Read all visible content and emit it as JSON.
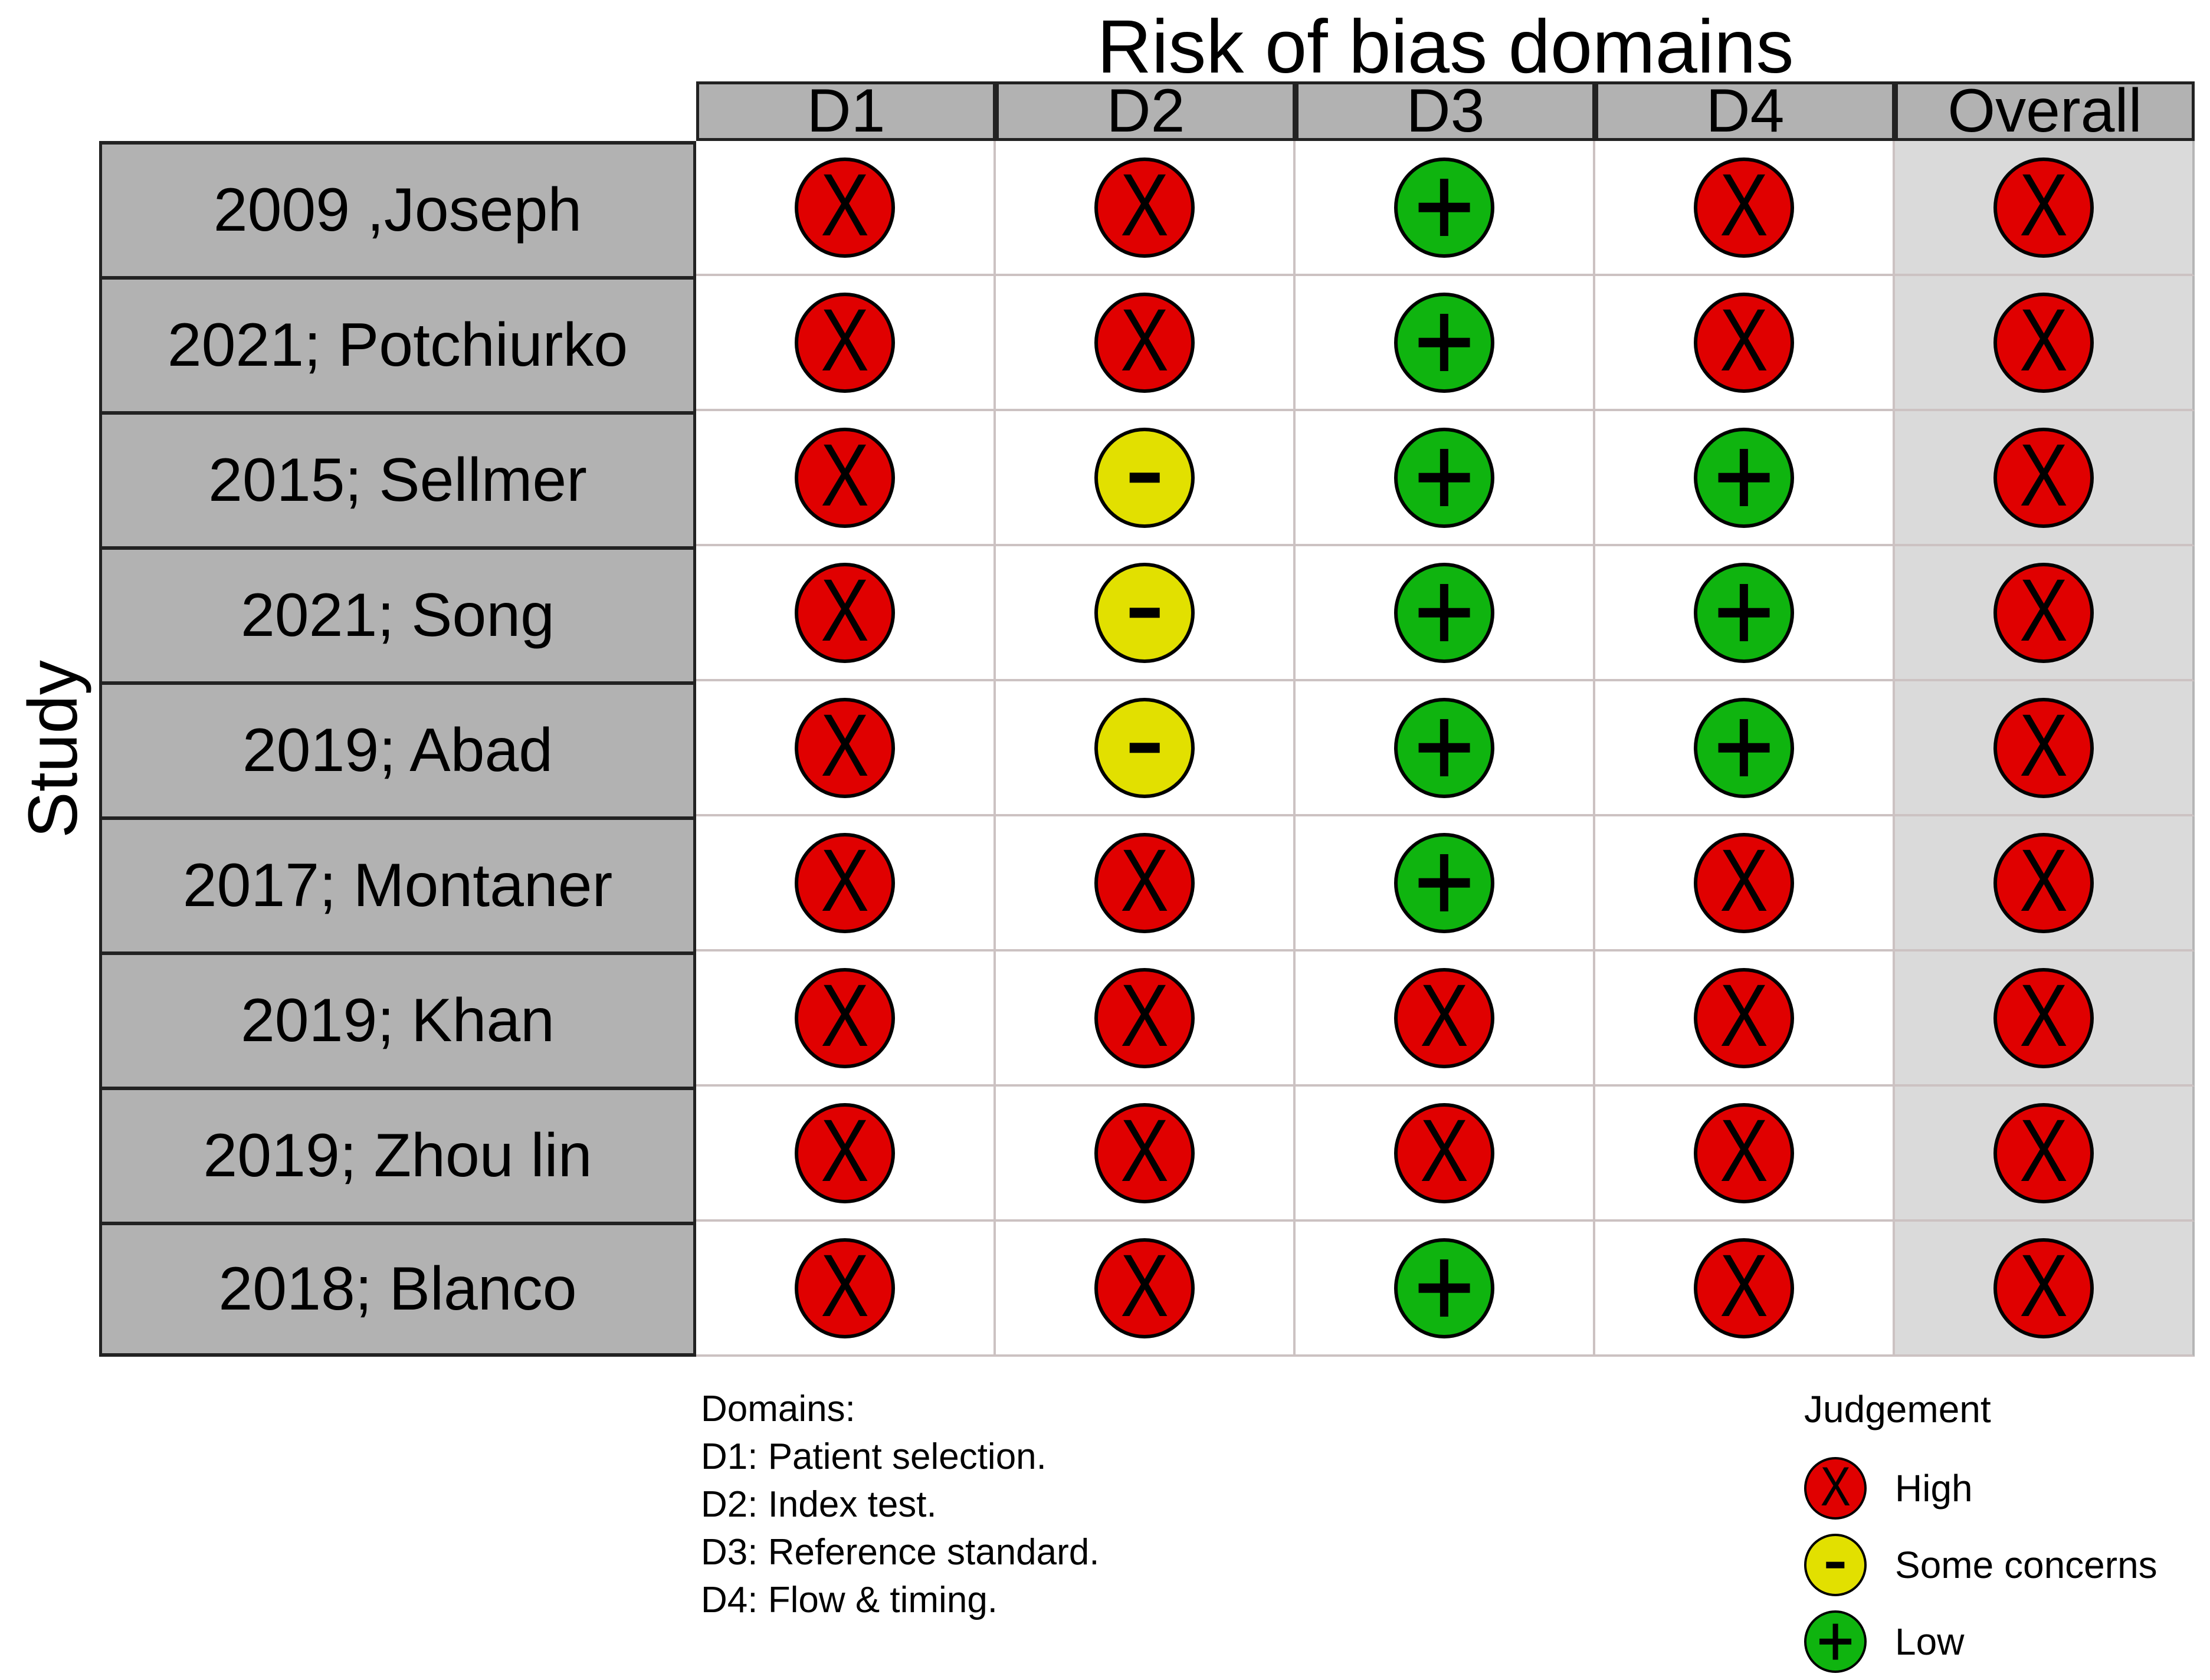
{
  "title": "Risk of bias domains",
  "y_axis_label": "Study",
  "columns": [
    "D1",
    "D2",
    "D3",
    "D4",
    "Overall"
  ],
  "rows": [
    {
      "study": "2009 ,Joseph",
      "judgements": [
        "high",
        "high",
        "low",
        "high",
        "high"
      ]
    },
    {
      "study": "2021; Potchiurko",
      "judgements": [
        "high",
        "high",
        "low",
        "high",
        "high"
      ]
    },
    {
      "study": "2015; Sellmer",
      "judgements": [
        "high",
        "some",
        "low",
        "low",
        "high"
      ]
    },
    {
      "study": "2021; Song",
      "judgements": [
        "high",
        "some",
        "low",
        "low",
        "high"
      ]
    },
    {
      "study": "2019; Abad",
      "judgements": [
        "high",
        "some",
        "low",
        "low",
        "high"
      ]
    },
    {
      "study": "2017; Montaner",
      "judgements": [
        "high",
        "high",
        "low",
        "high",
        "high"
      ]
    },
    {
      "study": "2019; Khan",
      "judgements": [
        "high",
        "high",
        "high",
        "high",
        "high"
      ]
    },
    {
      "study": "2019; Zhou lin",
      "judgements": [
        "high",
        "high",
        "high",
        "high",
        "high"
      ]
    },
    {
      "study": "2018; Blanco",
      "judgements": [
        "high",
        "high",
        "low",
        "high",
        "high"
      ]
    }
  ],
  "notes": {
    "heading": "Domains:",
    "lines": [
      "D1: Patient selection.",
      "D2: Index test.",
      "D3: Reference standard.",
      "D4: Flow & timing."
    ]
  },
  "legend": {
    "title": "Judgement",
    "items": [
      {
        "code": "high",
        "symbol": "X",
        "label": "High",
        "color": "#e00000"
      },
      {
        "code": "some",
        "symbol": "-",
        "label": "Some concerns",
        "color": "#e2e000"
      },
      {
        "code": "low",
        "symbol": "+",
        "label": "Low",
        "color": "#0fb40f"
      }
    ]
  },
  "colors": {
    "header_bg": "#b2b2b2",
    "study_bg": "#b2b2b2",
    "overall_bg": "#dadada",
    "grid_line": "#ccc2c2",
    "dark_border": "#222222"
  },
  "chart_data": {
    "type": "table",
    "title": "Risk of bias domains",
    "ylabel": "Study",
    "categories": [
      "D1",
      "D2",
      "D3",
      "D4",
      "Overall"
    ],
    "domain_definitions": [
      "D1: Patient selection.",
      "D2: Index test.",
      "D3: Reference standard.",
      "D4: Flow & timing."
    ],
    "judgement_levels": [
      "High",
      "Some concerns",
      "Low"
    ],
    "series": [
      {
        "name": "2009 ,Joseph",
        "values": [
          "High",
          "High",
          "Low",
          "High",
          "High"
        ]
      },
      {
        "name": "2021; Potchiurko",
        "values": [
          "High",
          "High",
          "Low",
          "High",
          "High"
        ]
      },
      {
        "name": "2015; Sellmer",
        "values": [
          "High",
          "Some concerns",
          "Low",
          "Low",
          "High"
        ]
      },
      {
        "name": "2021; Song",
        "values": [
          "High",
          "Some concerns",
          "Low",
          "Low",
          "High"
        ]
      },
      {
        "name": "2019; Abad",
        "values": [
          "High",
          "Some concerns",
          "Low",
          "Low",
          "High"
        ]
      },
      {
        "name": "2017; Montaner",
        "values": [
          "High",
          "High",
          "Low",
          "High",
          "High"
        ]
      },
      {
        "name": "2019; Khan",
        "values": [
          "High",
          "High",
          "High",
          "High",
          "High"
        ]
      },
      {
        "name": "2019; Zhou lin",
        "values": [
          "High",
          "High",
          "High",
          "High",
          "High"
        ]
      },
      {
        "name": "2018; Blanco",
        "values": [
          "High",
          "High",
          "Low",
          "High",
          "High"
        ]
      }
    ]
  }
}
